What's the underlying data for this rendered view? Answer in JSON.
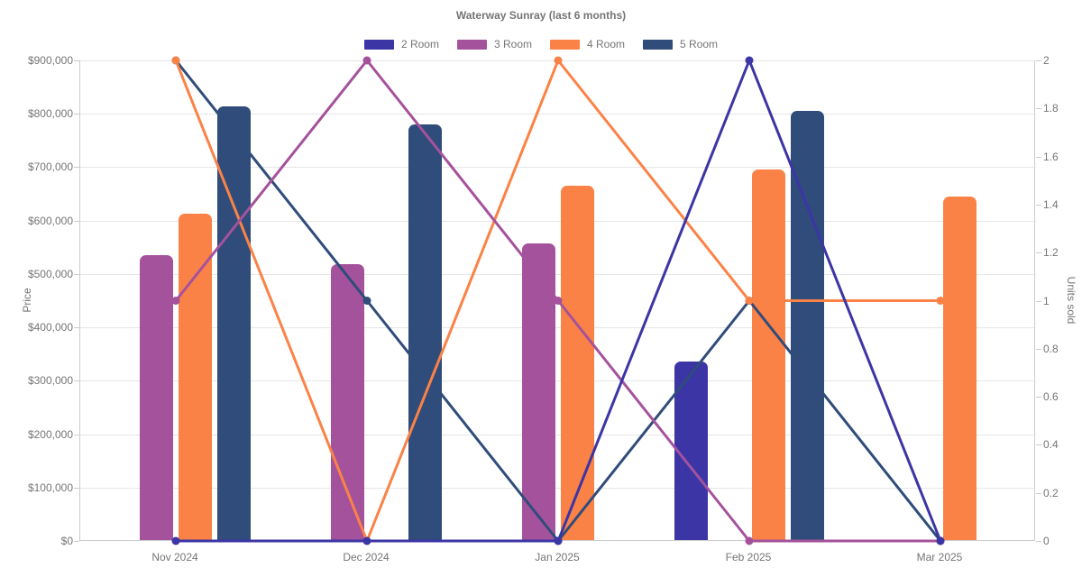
{
  "chart_data": {
    "type": "combo-bar-line",
    "title": "Waterway Sunray (last 6 months)",
    "categories": [
      "Nov 2024",
      "Dec 2024",
      "Jan 2025",
      "Feb 2025",
      "Mar 2025"
    ],
    "series": [
      {
        "name": "2 Room",
        "color": "#3C35A5",
        "bar_prices": [
          null,
          null,
          null,
          335000,
          null
        ],
        "line_units": [
          0,
          0,
          0,
          2,
          0
        ]
      },
      {
        "name": "3 Room",
        "color": "#A4529C",
        "bar_prices": [
          533000,
          517000,
          556000,
          null,
          null
        ],
        "line_units": [
          1,
          2,
          1,
          0,
          0
        ]
      },
      {
        "name": "4 Room",
        "color": "#FB8246",
        "bar_prices": [
          612000,
          null,
          663000,
          694000,
          643000
        ],
        "line_units": [
          2,
          0,
          2,
          1,
          1
        ]
      },
      {
        "name": "5 Room",
        "color": "#2F4C7A",
        "bar_prices": [
          812000,
          779000,
          null,
          803000,
          null
        ],
        "line_units": [
          2,
          1,
          0,
          1,
          0
        ]
      }
    ],
    "left_axis": {
      "label": "Price",
      "min": 0,
      "max": 900000,
      "step": 100000,
      "ticks": [
        "$0",
        "$100,000",
        "$200,000",
        "$300,000",
        "$400,000",
        "$500,000",
        "$600,000",
        "$700,000",
        "$800,000",
        "$900,000"
      ]
    },
    "right_axis": {
      "label": "Units sold",
      "min": 0,
      "max": 2,
      "step": 0.2,
      "ticks": [
        "0",
        "0.2",
        "0.4",
        "0.6",
        "0.8",
        "1",
        "1.2",
        "1.4",
        "1.6",
        "1.8",
        "2"
      ]
    },
    "grid": true,
    "legend_position": "top",
    "colors": {
      "grid_line": "#e6e6e6",
      "axis_line": "#cccccc",
      "text": "#757575"
    }
  }
}
